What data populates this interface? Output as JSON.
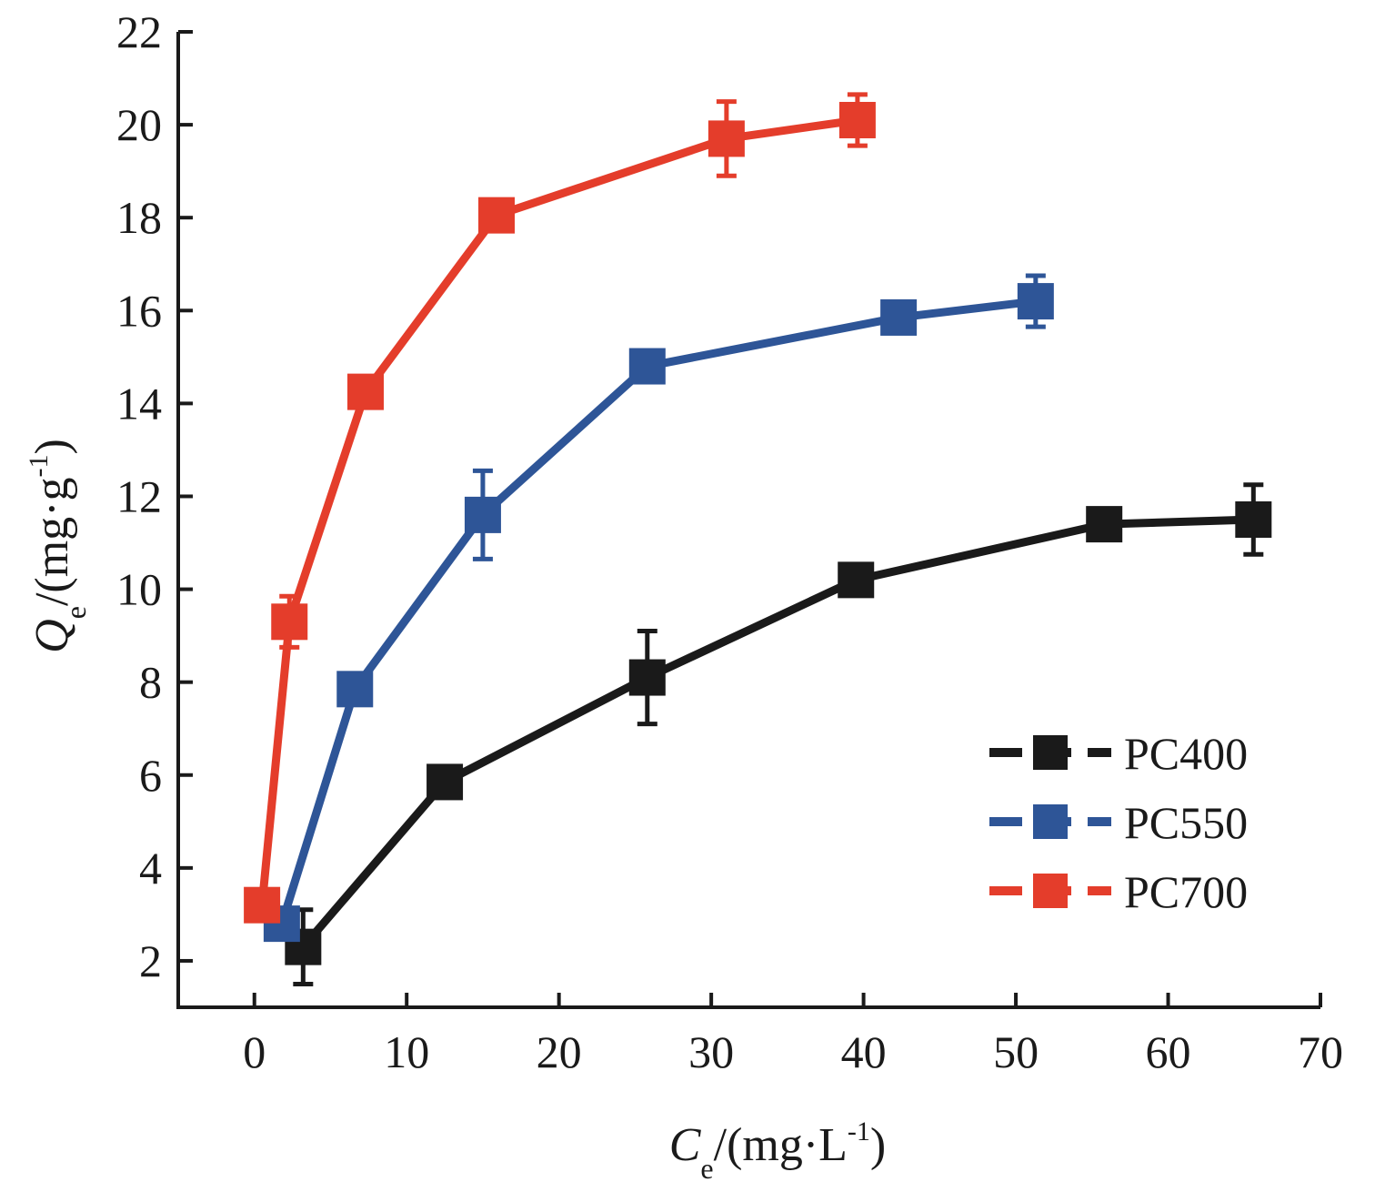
{
  "chart_data": {
    "type": "line",
    "title": "",
    "xlabel": {
      "symbol": "C",
      "subscript": "e",
      "rest": "/(mg·L",
      "superscript": "-1",
      "close": ")"
    },
    "ylabel": {
      "symbol": "Q",
      "subscript": "e",
      "rest": "/(mg·g",
      "superscript": "-1",
      "close": ")"
    },
    "xlim": [
      -5,
      70
    ],
    "ylim": [
      1,
      22
    ],
    "xticks": [
      0,
      10,
      20,
      30,
      40,
      50,
      60,
      70
    ],
    "yticks": [
      2,
      4,
      6,
      8,
      10,
      12,
      14,
      16,
      18,
      20,
      22
    ],
    "grid": false,
    "legend_position": "bottom-right",
    "marker": "square",
    "series": [
      {
        "name": "PC400",
        "color": "#1a1a1a",
        "x": [
          3.2,
          12.5,
          25.8,
          39.5,
          55.8,
          65.6
        ],
        "y": [
          2.3,
          5.85,
          8.1,
          10.2,
          11.4,
          11.5
        ],
        "err": [
          0.8,
          0.15,
          1.0,
          0.3,
          0.15,
          0.75
        ]
      },
      {
        "name": "PC550",
        "color": "#2e5597",
        "x": [
          1.8,
          6.6,
          15.0,
          25.8,
          42.3,
          51.3
        ],
        "y": [
          2.8,
          7.85,
          11.6,
          14.8,
          15.85,
          16.2
        ],
        "err": [
          0.2,
          0.2,
          0.95,
          0.2,
          0.15,
          0.55
        ]
      },
      {
        "name": "PC700",
        "color": "#e43d2b",
        "x": [
          0.5,
          2.3,
          7.3,
          15.9,
          31.0,
          39.6
        ],
        "y": [
          3.2,
          9.3,
          14.25,
          18.05,
          19.7,
          20.1
        ],
        "err": [
          0.15,
          0.55,
          0.3,
          0.2,
          0.8,
          0.55
        ]
      }
    ]
  }
}
